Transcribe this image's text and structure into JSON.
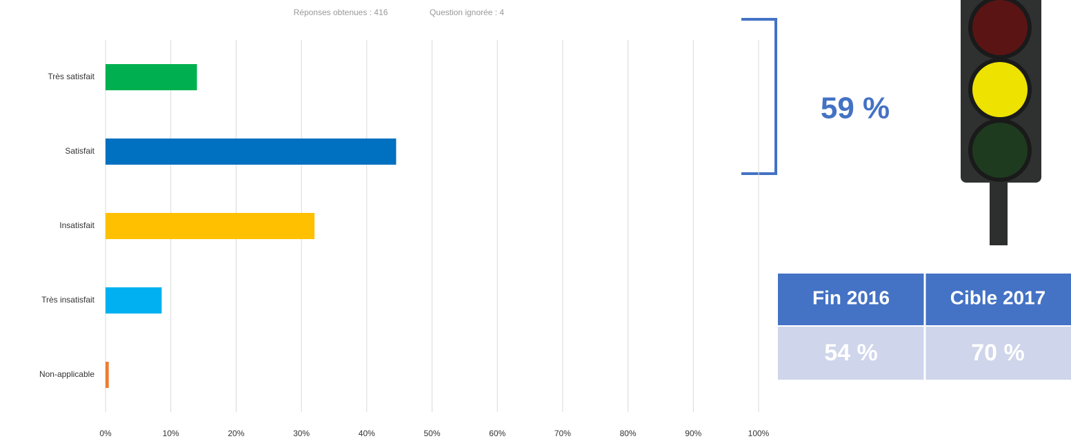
{
  "chart_data": {
    "type": "bar",
    "horizontal": true,
    "notes": [
      "Réponses obtenues : 416",
      "Question ignorée : 4"
    ],
    "categories": [
      "Très satisfait",
      "Satisfait",
      "Insatisfait",
      "Très insatisfait",
      "Non-applicable"
    ],
    "values": [
      14,
      44.5,
      32,
      8.6,
      0.5
    ],
    "colors": [
      "#00b050",
      "#0070c0",
      "#ffc000",
      "#00b0f0",
      "#ed7d31"
    ],
    "xlim": [
      0,
      100
    ],
    "xticks": [
      {
        "value": 0,
        "label": "0%"
      },
      {
        "value": 10,
        "label": "10%"
      },
      {
        "value": 20,
        "label": "20%"
      },
      {
        "value": 30,
        "label": "30%"
      },
      {
        "value": 40,
        "label": "40%"
      },
      {
        "value": 50,
        "label": "50%"
      },
      {
        "value": 60,
        "label": "60%"
      },
      {
        "value": 70,
        "label": "70%"
      },
      {
        "value": 80,
        "label": "80%"
      },
      {
        "value": 90,
        "label": "90%"
      },
      {
        "value": 100,
        "label": "100%"
      }
    ],
    "grid": true
  },
  "annotation": "59 %",
  "table": {
    "header": [
      "Fin 2016",
      "Cible 2017"
    ],
    "row": [
      "54 %",
      "70 %"
    ]
  }
}
